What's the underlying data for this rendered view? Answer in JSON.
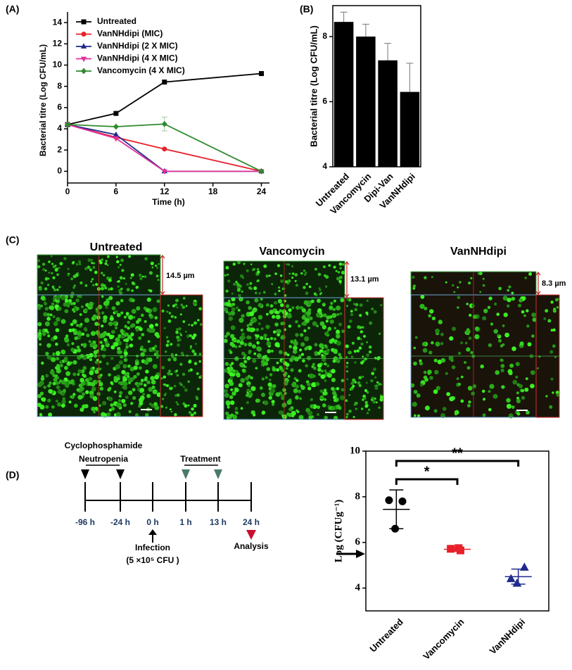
{
  "panel_labels": [
    "(A)",
    "(B)",
    "(C)",
    "(D)"
  ],
  "chart_data": [
    {
      "type": "line",
      "xlabel": "Time (h)",
      "ylabel": "Bacterial titre (Log CFU/mL)",
      "x": [
        0,
        6,
        12,
        24
      ],
      "series": [
        {
          "name": "Untreated",
          "color": "#000000",
          "marker": "square",
          "values": [
            4.4,
            5.45,
            8.4,
            9.2
          ]
        },
        {
          "name": "VanNHdipi (MIC)",
          "color": "#e8202a",
          "marker": "circle",
          "values": [
            4.4,
            3.2,
            2.1,
            0
          ]
        },
        {
          "name": "VanNHdipi (2 X MIC)",
          "color": "#1f2a8c",
          "marker": "triangle",
          "values": [
            4.4,
            3.45,
            0,
            0
          ]
        },
        {
          "name": "VanNHdipi (4 X MIC)",
          "color": "#e0309a",
          "marker": "triangle-down",
          "values": [
            4.4,
            3.1,
            0,
            0
          ]
        },
        {
          "name": "Vancomycin (4 X MIC)",
          "color": "#2e8b2e",
          "marker": "diamond",
          "values": [
            4.4,
            4.2,
            4.45,
            0
          ],
          "errors": [
            0,
            0,
            0.65,
            0
          ]
        }
      ],
      "xlim": [
        0,
        25
      ],
      "xticks": [
        0,
        6,
        12,
        18,
        24
      ],
      "ylim": [
        -1.1,
        15
      ],
      "yticks": [
        0,
        2,
        4,
        6,
        8,
        10,
        12,
        14
      ],
      "legend": "upper left"
    },
    {
      "type": "bar",
      "ylabel": "Bacterial titre (Log CFU/mL)",
      "categories": [
        "Untreated",
        "Vancomycin",
        "Dipi-Van",
        "VanNHdipi"
      ],
      "values": [
        8.45,
        8.0,
        7.27,
        6.3
      ],
      "errors": [
        0.3,
        0.38,
        0.52,
        0.88
      ],
      "color": "#000000",
      "ylim": [
        4,
        8.95
      ],
      "yticks": [
        4,
        6,
        8
      ]
    },
    {
      "type": "dot",
      "ylabel": "Log (CFUg⁻¹)",
      "categories": [
        "Untreated",
        "Vancomycin",
        "VanNHdipi"
      ],
      "series": [
        {
          "color": "#000000",
          "marker": "circle",
          "values": [
            7.8,
            7.85,
            6.6
          ],
          "mean": 7.45,
          "sd": 0.85
        },
        {
          "color": "#e8202a",
          "marker": "square",
          "values": [
            5.75,
            5.72,
            5.65
          ],
          "mean": 5.7,
          "sd": 0.06
        },
        {
          "color": "#1f2a8c",
          "marker": "triangle",
          "values": [
            4.9,
            4.4,
            4.2
          ],
          "mean": 4.5,
          "sd": 0.33
        }
      ],
      "annotations": [
        "*",
        "**"
      ],
      "ylim": [
        3,
        10
      ],
      "yticks": [
        4,
        6,
        8,
        10
      ]
    }
  ],
  "microscopy": [
    {
      "title": "Untreated",
      "thickness": "14.5 µm"
    },
    {
      "title": "Vancomycin",
      "thickness": "13.1 µm"
    },
    {
      "title": "VanNHdipi",
      "thickness": "8.3 µm"
    }
  ],
  "timeline": {
    "phases": [
      "Cyclophosphamide",
      "Neutropenia",
      "Treatment"
    ],
    "times": [
      "-96 h",
      "-24 h",
      "0 h",
      "1 h",
      "13 h",
      "24 h"
    ],
    "infection": [
      "Infection",
      "(5 ×10⁵ CFU )"
    ],
    "analysis": "Analysis"
  }
}
